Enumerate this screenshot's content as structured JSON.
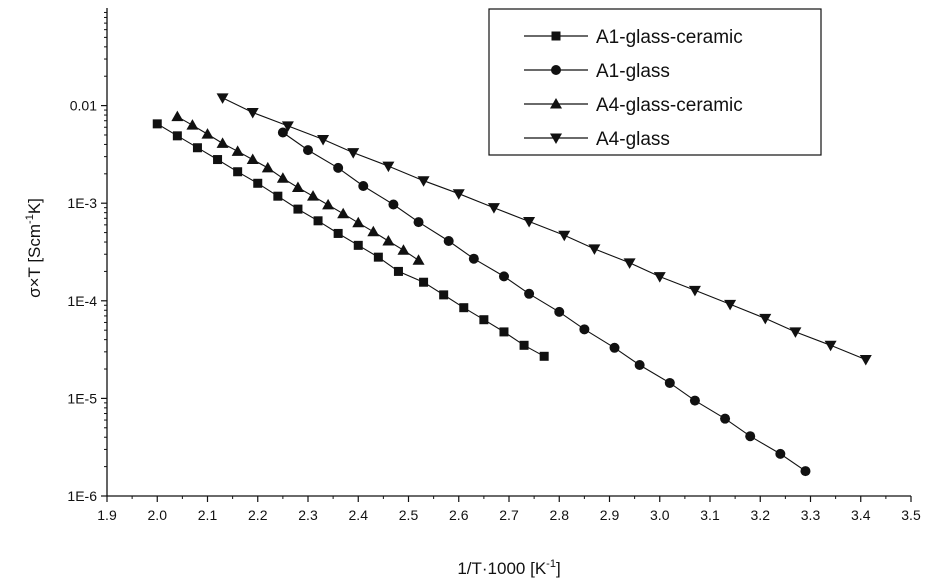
{
  "chart_data": {
    "type": "line",
    "xlabel": "1/T·1000 [K⁻¹]",
    "xlabel_main": "1/T·1000 [K",
    "xlabel_sup": "-1",
    "xlabel_end": "]",
    "ylabel": "σ×T [Scm⁻¹K]",
    "ylabel_main": "σ×T [Scm",
    "ylabel_sup": "-1",
    "ylabel_end": "K]",
    "xlim": [
      1.9,
      3.5
    ],
    "ylim": [
      1e-06,
      0.1
    ],
    "yscale": "log",
    "grid": false,
    "legend_position": "top-right",
    "x_ticks": [
      "1.9",
      "2.0",
      "2.1",
      "2.2",
      "2.3",
      "2.4",
      "2.5",
      "2.6",
      "2.7",
      "2.8",
      "2.9",
      "3.0",
      "3.1",
      "3.2",
      "3.3",
      "3.4",
      "3.5"
    ],
    "y_ticks": [
      {
        "value": 1e-06,
        "label": "1E-6"
      },
      {
        "value": 1e-05,
        "label": "1E-5"
      },
      {
        "value": 0.0001,
        "label": "1E-4"
      },
      {
        "value": 0.001,
        "label": "1E-3"
      },
      {
        "value": 0.01,
        "label": "0.01"
      }
    ],
    "series": [
      {
        "name": "A1-glass-ceramic",
        "marker": "square",
        "x": [
          2.0,
          2.04,
          2.08,
          2.12,
          2.16,
          2.2,
          2.24,
          2.28,
          2.32,
          2.36,
          2.4,
          2.44,
          2.48,
          2.53,
          2.57,
          2.61,
          2.65,
          2.69,
          2.73,
          2.77
        ],
        "y": [
          0.0065,
          0.0049,
          0.0037,
          0.0028,
          0.0021,
          0.0016,
          0.00118,
          0.00087,
          0.00066,
          0.00049,
          0.00037,
          0.00028,
          0.0002,
          0.000155,
          0.000115,
          8.5e-05,
          6.4e-05,
          4.8e-05,
          3.5e-05,
          2.7e-05
        ]
      },
      {
        "name": "A1-glass",
        "marker": "circle",
        "x": [
          2.25,
          2.3,
          2.36,
          2.41,
          2.47,
          2.52,
          2.58,
          2.63,
          2.69,
          2.74,
          2.8,
          2.85,
          2.91,
          2.96,
          3.02,
          3.07,
          3.13,
          3.18,
          3.24,
          3.29
        ],
        "y": [
          0.0053,
          0.0035,
          0.0023,
          0.0015,
          0.00097,
          0.00064,
          0.00041,
          0.00027,
          0.000178,
          0.000118,
          7.7e-05,
          5.1e-05,
          3.3e-05,
          2.2e-05,
          1.44e-05,
          9.5e-06,
          6.2e-06,
          4.1e-06,
          2.7e-06,
          1.8e-06
        ]
      },
      {
        "name": "A4-glass-ceramic",
        "marker": "triangle-up",
        "x": [
          2.04,
          2.07,
          2.1,
          2.13,
          2.16,
          2.19,
          2.22,
          2.25,
          2.28,
          2.31,
          2.34,
          2.37,
          2.4,
          2.43,
          2.46,
          2.49,
          2.52
        ],
        "y": [
          0.0077,
          0.0063,
          0.0051,
          0.0041,
          0.0034,
          0.0028,
          0.0023,
          0.0018,
          0.00145,
          0.00118,
          0.00096,
          0.00078,
          0.00063,
          0.00051,
          0.00041,
          0.00033,
          0.00026
        ]
      },
      {
        "name": "A4-glass",
        "marker": "triangle-down",
        "x": [
          2.13,
          2.19,
          2.26,
          2.33,
          2.39,
          2.46,
          2.53,
          2.6,
          2.67,
          2.74,
          2.81,
          2.87,
          2.94,
          3.0,
          3.07,
          3.14,
          3.21,
          3.27,
          3.34,
          3.41
        ],
        "y": [
          0.012,
          0.0085,
          0.0062,
          0.0045,
          0.0033,
          0.0024,
          0.0017,
          0.00125,
          0.0009,
          0.00065,
          0.00047,
          0.00034,
          0.000245,
          0.000177,
          0.000128,
          9.2e-05,
          6.6e-05,
          4.8e-05,
          3.5e-05,
          2.5e-05
        ]
      }
    ]
  }
}
